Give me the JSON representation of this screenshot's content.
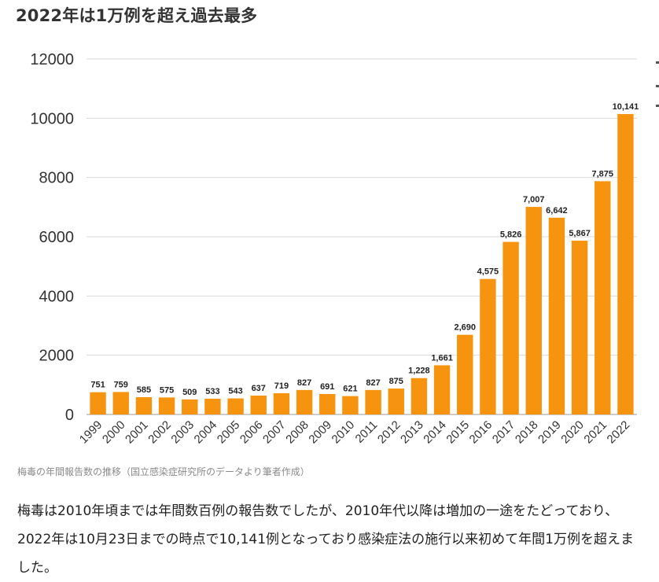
{
  "page": {
    "title": "2022年は1万例を超え過去最多",
    "caption": "梅毒の年間報告数の推移（国立感染症研究所のデータより筆者作成）",
    "body_text": "梅毒は2010年頃までは年間数百例の報告数でしたが、2010年代以降は増加の一途をたどっており、2022年は10月23日までの時点で10,141例となっており感染症法の施行以来初めて年間1万例を超えました。"
  },
  "colors": {
    "bar": "#F7940F",
    "grid": "#d9d9d9",
    "axis": "#999999",
    "text": "#222222"
  },
  "chart_data": {
    "type": "bar",
    "title": "",
    "xlabel": "",
    "ylabel": "",
    "ylim": [
      0,
      12000
    ],
    "yticks": [
      0,
      2000,
      4000,
      6000,
      8000,
      10000,
      12000
    ],
    "grid": true,
    "categories": [
      "1999",
      "2000",
      "2001",
      "2002",
      "2003",
      "2004",
      "2005",
      "2006",
      "2007",
      "2008",
      "2009",
      "2010",
      "2011",
      "2012",
      "2013",
      "2014",
      "2015",
      "2016",
      "2017",
      "2018",
      "2019",
      "2020",
      "2021",
      "2022"
    ],
    "values": [
      751,
      759,
      585,
      575,
      509,
      533,
      543,
      637,
      719,
      827,
      691,
      621,
      827,
      875,
      1228,
      1661,
      2690,
      4575,
      5826,
      7007,
      6642,
      5867,
      7875,
      10141
    ],
    "data_labels": [
      "751",
      "759",
      "585",
      "575",
      "509",
      "533",
      "543",
      "637",
      "719",
      "827",
      "691",
      "621",
      "827",
      "875",
      "1,228",
      "1,661",
      "2,690",
      "4,575",
      "5,826",
      "7,007",
      "6,642",
      "5,867",
      "7,875",
      "10,141"
    ]
  }
}
